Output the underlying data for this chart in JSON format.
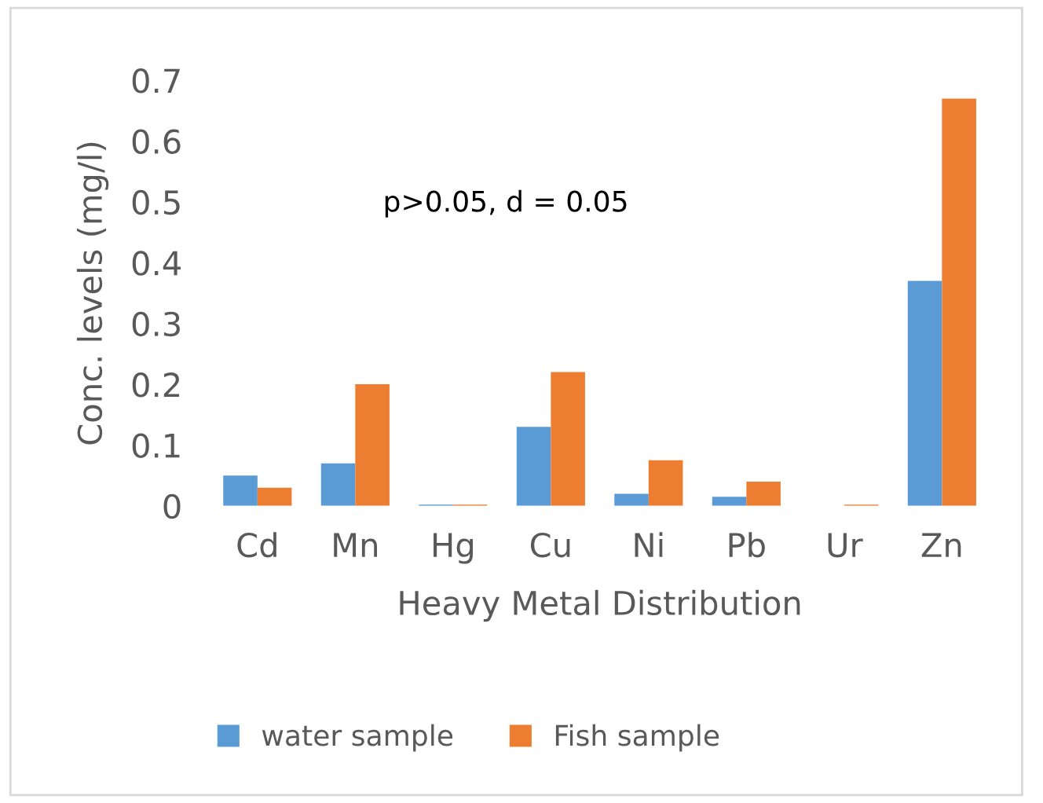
{
  "chart_data": {
    "type": "bar",
    "xlabel": "Heavy Metal Distribution",
    "ylabel": "Conc. levels (mg/l)",
    "categories": [
      "Cd",
      "Mn",
      "Hg",
      "Cu",
      "Ni",
      "Pb",
      "Ur",
      "Zn"
    ],
    "series": [
      {
        "name": "water sample",
        "color": "#5b9bd5",
        "values": [
          0.05,
          0.07,
          0.002,
          0.13,
          0.02,
          0.015,
          0,
          0.37
        ]
      },
      {
        "name": "Fish sample",
        "color": "#ed7d31",
        "values": [
          0.03,
          0.2,
          0.002,
          0.22,
          0.075,
          0.04,
          0.002,
          0.67
        ]
      }
    ],
    "ylim": [
      0,
      0.7
    ],
    "yticks": [
      {
        "value": 0,
        "label": "0"
      },
      0.1,
      0.2,
      0.3,
      0.4,
      0.5,
      0.6,
      0.7
    ],
    "annotations": [
      "p>0.05, d = 0.05"
    ],
    "grid": false,
    "legend": "bottom"
  }
}
